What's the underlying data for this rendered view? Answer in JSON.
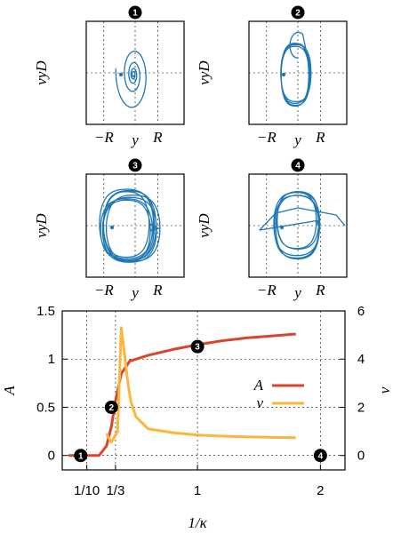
{
  "chart_data": [
    {
      "type": "line",
      "panel": "1",
      "xlabel": "y",
      "ylabel": "vyD",
      "x_ticks": [
        "−R",
        "R"
      ],
      "trajectory_color": "#1f77b4",
      "description_series": "phase portrait, spiral converging to a point"
    },
    {
      "type": "line",
      "panel": "2",
      "xlabel": "y",
      "ylabel": "vyD",
      "x_ticks": [
        "−R",
        "R"
      ],
      "trajectory_color": "#1f77b4",
      "description_series": "phase portrait, closed limit cycle"
    },
    {
      "type": "line",
      "panel": "3",
      "xlabel": "y",
      "ylabel": "vyD",
      "x_ticks": [
        "−R",
        "R"
      ],
      "trajectory_color": "#1f77b4",
      "description_series": "phase portrait, multiple nested loops"
    },
    {
      "type": "line",
      "panel": "4",
      "xlabel": "y",
      "ylabel": "vyD",
      "x_ticks": [
        "−R",
        "R"
      ],
      "trajectory_color": "#1f77b4",
      "description_series": "phase portrait, irregular loops"
    },
    {
      "type": "line",
      "xlabel": "1/κ",
      "ylabel_left": "A",
      "ylabel_right": "ν",
      "xlim": [
        -0.1,
        2.2
      ],
      "ylim_left": [
        -0.15,
        1.5
      ],
      "ylim_right": [
        -0.6,
        6
      ],
      "x_ticks": [
        "1/10",
        "1/3",
        "1",
        "2"
      ],
      "y_left_ticks": [
        "0",
        "0.5",
        "1",
        "1.5"
      ],
      "y_right_ticks": [
        "0",
        "2",
        "4",
        "6"
      ],
      "grid": true,
      "legend_position": "center-right",
      "series": [
        {
          "name": "A",
          "axis": "left",
          "color": "#d9452b",
          "x": [
            -0.05,
            0.2,
            0.26,
            0.3,
            0.33,
            0.38,
            0.45,
            0.6,
            0.8,
            1.0,
            1.2,
            1.4,
            1.6,
            1.8
          ],
          "y": [
            0,
            0,
            0.1,
            0.3,
            0.55,
            0.85,
            0.98,
            1.04,
            1.1,
            1.15,
            1.19,
            1.22,
            1.24,
            1.26
          ]
        },
        {
          "name": "ν",
          "axis": "right",
          "color": "#fbb63b",
          "x": [
            0.26,
            0.3,
            0.35,
            0.38,
            0.4,
            0.42,
            0.44,
            0.46,
            0.5,
            0.6,
            0.8,
            1.0,
            1.2,
            1.4,
            1.6,
            1.8
          ],
          "y": [
            0.9,
            0.55,
            1.0,
            5.3,
            4.5,
            3.6,
            2.8,
            2.2,
            1.6,
            1.1,
            0.95,
            0.85,
            0.8,
            0.77,
            0.75,
            0.74
          ]
        }
      ],
      "markers": [
        {
          "label": "1",
          "x": 0.05,
          "y": 0
        },
        {
          "label": "2",
          "x": 0.3,
          "y": 0.5
        },
        {
          "label": "3",
          "x": 1.0,
          "y": 1.13
        },
        {
          "label": "4",
          "x": 2.0,
          "y": 0
        }
      ]
    }
  ]
}
